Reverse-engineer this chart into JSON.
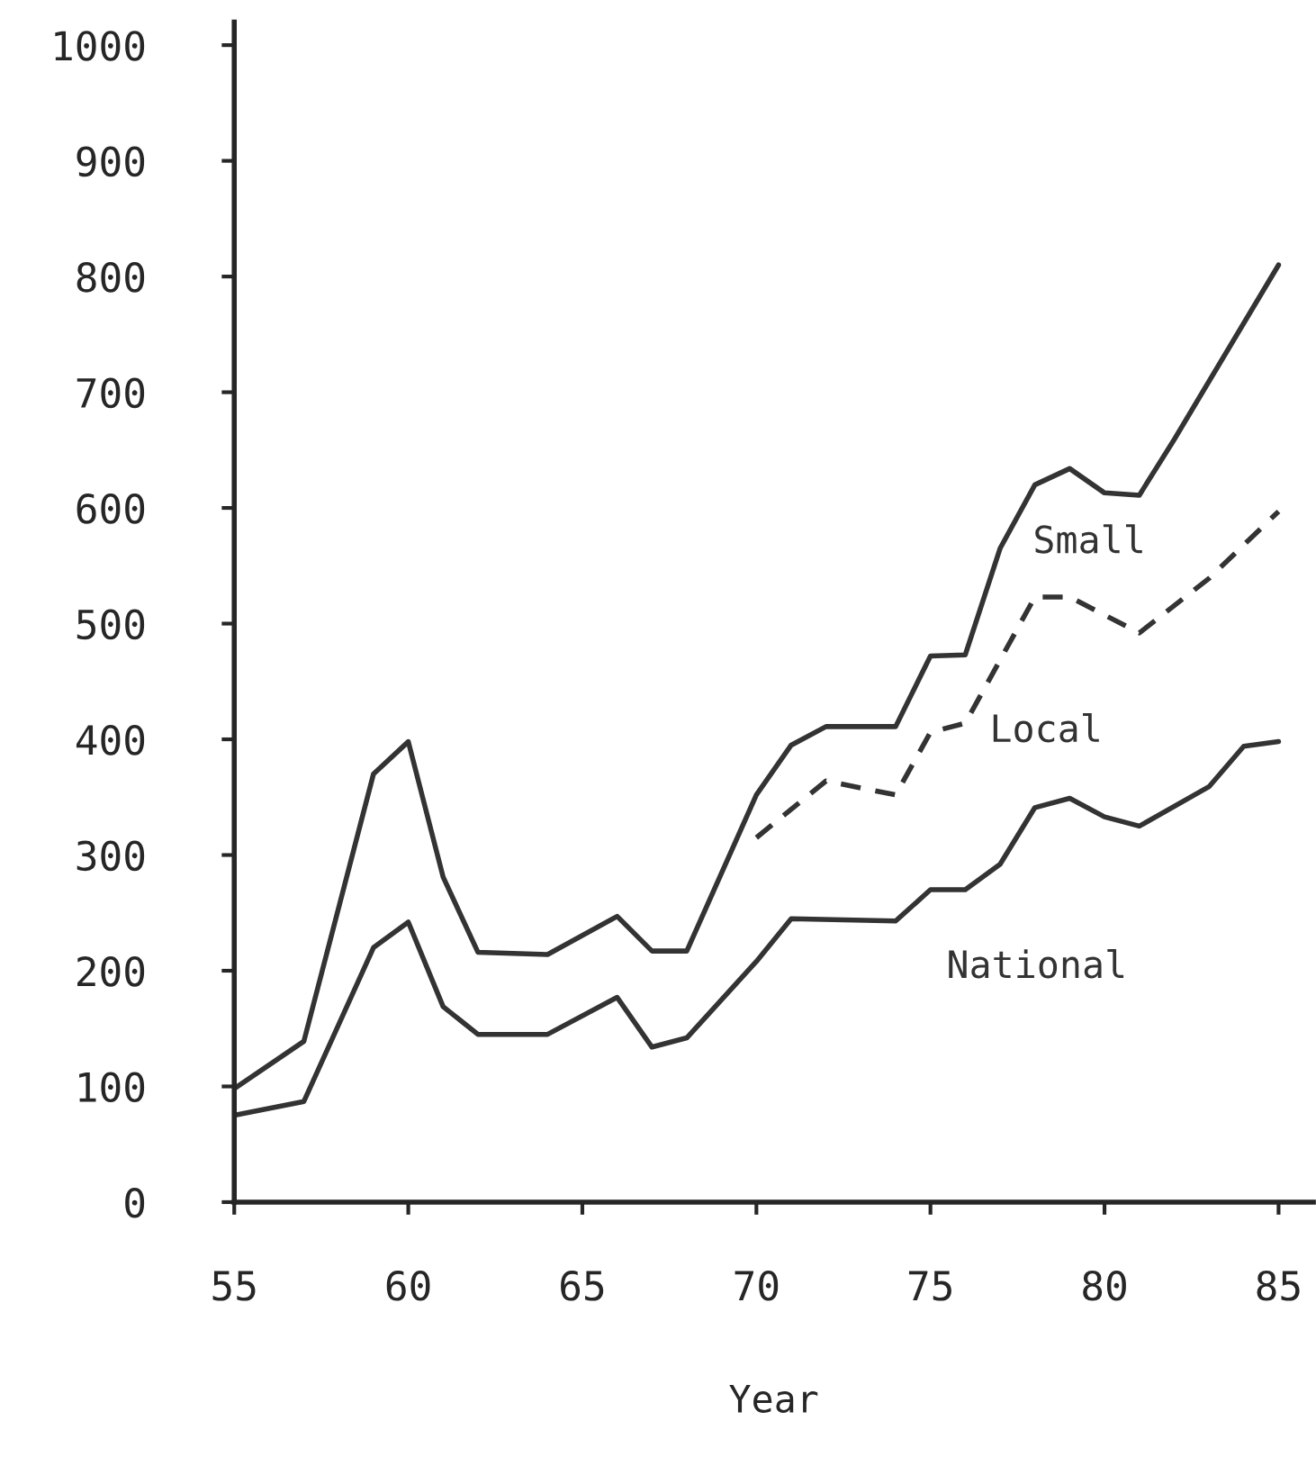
{
  "chart_data": {
    "type": "line",
    "xlabel": "Year",
    "xlim": [
      55,
      86
    ],
    "xticks": [
      55,
      60,
      65,
      70,
      75,
      80,
      85
    ],
    "ylim": [
      0,
      1020
    ],
    "yticks": [
      0,
      100,
      200,
      300,
      400,
      500,
      600,
      700,
      800,
      900,
      1000
    ],
    "grid": false,
    "legend": false,
    "marker": "none",
    "series": [
      {
        "name": "Small",
        "color": "#333333",
        "line_style": "solid",
        "x": [
          55,
          57,
          59,
          60,
          61,
          62,
          64,
          66,
          67,
          68,
          70,
          71,
          72,
          74,
          75,
          76,
          77,
          78,
          79,
          80,
          81,
          82,
          85
        ],
        "values": [
          98,
          139,
          370,
          398,
          281,
          216,
          214,
          247,
          217,
          217,
          352,
          395,
          411,
          411,
          472,
          473,
          565,
          620,
          634,
          613,
          611,
          659,
          810
        ]
      },
      {
        "name": "Local",
        "color": "#333333",
        "line_style": "dashed",
        "x": [
          70,
          72,
          74,
          75,
          76,
          78,
          79,
          81,
          83,
          85
        ],
        "values": [
          315,
          364,
          352,
          406,
          414,
          523,
          523,
          492,
          539,
          597
        ]
      },
      {
        "name": "National",
        "color": "#333333",
        "line_style": "solid",
        "x": [
          55,
          57,
          59,
          60,
          61,
          62,
          64,
          66,
          67,
          68,
          70,
          71,
          74,
          75,
          76,
          77,
          78,
          79,
          80,
          81,
          83,
          84,
          85
        ],
        "values": [
          75,
          87,
          220,
          242,
          169,
          145,
          145,
          177,
          134,
          142,
          208,
          245,
          243,
          270,
          270,
          292,
          341,
          349,
          333,
          325,
          359,
          394,
          398
        ]
      }
    ]
  }
}
